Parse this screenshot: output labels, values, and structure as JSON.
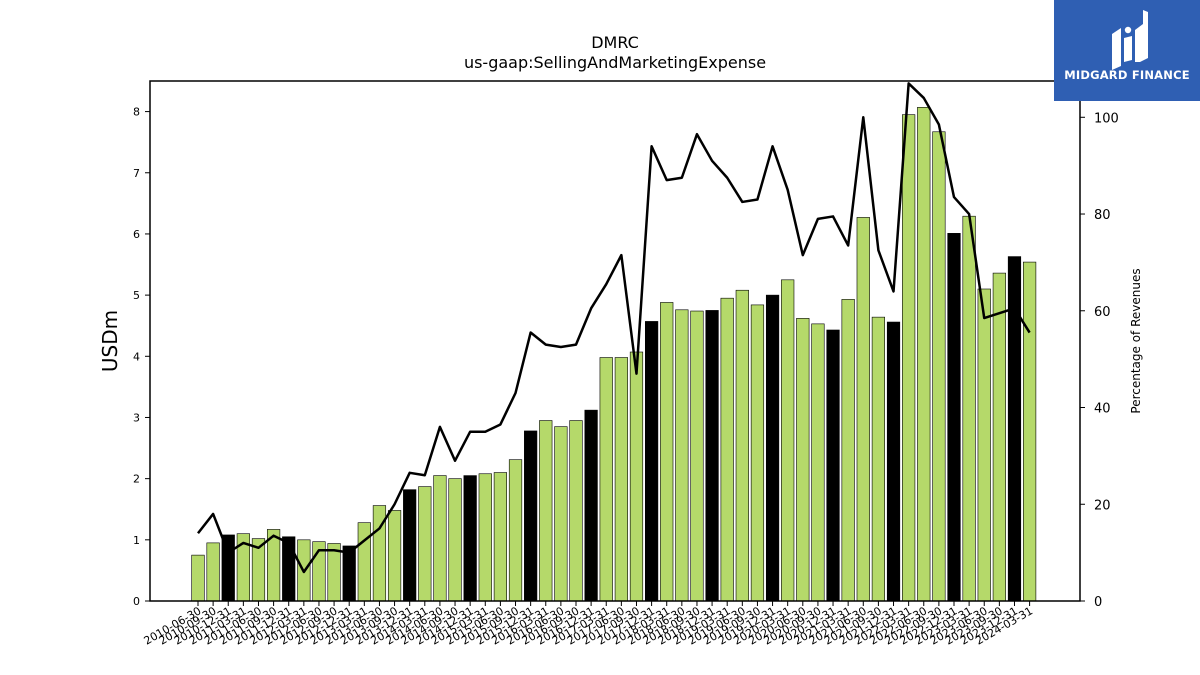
{
  "chart_data": {
    "type": "bar",
    "title": "DMRC",
    "subtitle": "us-gaap:SellingAndMarketingExpense",
    "ylabel": "USDm",
    "y2label": "Percentage of Revenues",
    "ylim": [
      0,
      8.5
    ],
    "y2lim": [
      0,
      107.5
    ],
    "yticks": [
      "0",
      "1",
      "2",
      "3",
      "4",
      "5",
      "6",
      "7",
      "8"
    ],
    "y2ticks": [
      "0",
      "20",
      "40",
      "60",
      "80",
      "100"
    ],
    "categories": [
      "2010-06-30",
      "2010-09-30",
      "2010-12-31",
      "2011-03-31",
      "2011-06-30",
      "2011-09-30",
      "2011-12-31",
      "2012-03-31",
      "2012-06-30",
      "2012-09-30",
      "2012-12-31",
      "2013-03-31",
      "2013-06-30",
      "2013-09-30",
      "2013-12-31",
      "2014-03-31",
      "2014-06-30",
      "2014-09-30",
      "2014-12-31",
      "2015-03-31",
      "2015-06-30",
      "2015-09-30",
      "2015-12-31",
      "2016-03-31",
      "2016-06-30",
      "2016-09-30",
      "2016-12-31",
      "2017-03-31",
      "2017-06-30",
      "2017-09-30",
      "2017-12-31",
      "2018-03-31",
      "2018-06-30",
      "2018-09-30",
      "2018-12-31",
      "2019-03-31",
      "2019-06-30",
      "2019-09-30",
      "2019-12-31",
      "2020-03-31",
      "2020-06-30",
      "2020-09-30",
      "2020-12-31",
      "2021-03-31",
      "2021-06-30",
      "2021-09-30",
      "2021-12-31",
      "2022-03-31",
      "2022-06-30",
      "2022-09-30",
      "2022-12-31",
      "2023-03-31",
      "2023-06-30",
      "2023-09-30",
      "2023-12-31",
      "2024-03-31"
    ],
    "series": [
      {
        "type": "bar",
        "values": [
          0.75,
          0.95,
          1.08,
          1.1,
          1.02,
          1.17,
          1.05,
          1.0,
          0.97,
          0.94,
          0.9,
          1.28,
          1.56,
          1.48,
          1.82,
          1.87,
          2.05,
          2.0,
          2.05,
          2.08,
          2.1,
          2.31,
          2.78,
          2.95,
          2.85,
          2.95,
          3.12,
          3.98,
          3.98,
          4.07,
          4.57,
          4.88,
          4.76,
          4.74,
          4.75,
          4.95,
          5.08,
          4.84,
          5.0,
          5.25,
          4.62,
          4.53,
          4.43,
          4.93,
          6.27,
          4.64,
          4.56,
          7.95,
          8.07,
          7.67,
          6.01,
          6.29,
          5.1,
          5.36,
          5.63,
          5.54
        ],
        "year_end": [
          false,
          false,
          true,
          false,
          false,
          false,
          true,
          false,
          false,
          false,
          true,
          false,
          false,
          false,
          true,
          false,
          false,
          false,
          true,
          false,
          false,
          false,
          true,
          false,
          false,
          false,
          true,
          false,
          false,
          false,
          true,
          false,
          false,
          false,
          true,
          false,
          false,
          false,
          true,
          false,
          false,
          false,
          true,
          false,
          false,
          false,
          true,
          false,
          false,
          false,
          true,
          false,
          false,
          false,
          true,
          false
        ]
      },
      {
        "type": "line",
        "axis": "right",
        "values": [
          14,
          18,
          10,
          12,
          11,
          13.5,
          12,
          6,
          10.5,
          10.5,
          10,
          12.5,
          15,
          20,
          26.5,
          26,
          36,
          29,
          35,
          35,
          36.5,
          43,
          55.5,
          53,
          52.5,
          53,
          60.5,
          65.5,
          71.5,
          47,
          94,
          87,
          87.5,
          96.5,
          91,
          87.5,
          82.5,
          83,
          94,
          85,
          71.5,
          79,
          79.5,
          73.5,
          100,
          72.5,
          64,
          107,
          104,
          98.5,
          83.5,
          80,
          58.5,
          59.5,
          60.5,
          55.5
        ]
      }
    ],
    "colors": {
      "bar": "#b5d96a",
      "bar_year_end": "#000000",
      "line": "#000000"
    }
  },
  "logo": {
    "text": "MIDGARD FINANCE",
    "bg": "#2f5fb3"
  }
}
